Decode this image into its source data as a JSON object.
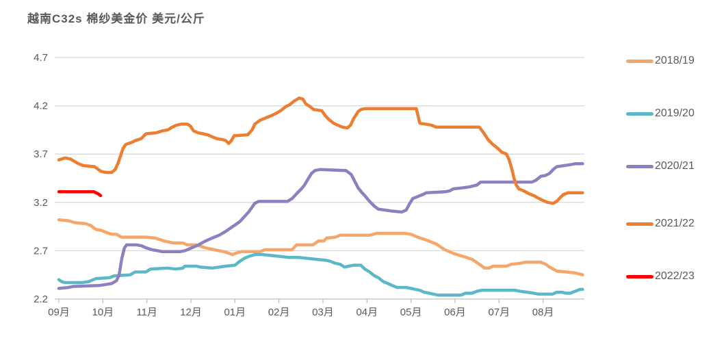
{
  "title": "越南C32s  棉纱美金价  美元/公斤",
  "colors": {
    "text": "#595959",
    "gridline": "#D9D9D9",
    "axis_line": "#BFBFBF",
    "background": "#FFFFFF"
  },
  "chart_data": {
    "type": "line",
    "title": "越南C32s 棉纱美金价 美元/公斤",
    "xlabel": "",
    "ylabel": "美元/公斤",
    "x_categories": [
      "09月",
      "10月",
      "11月",
      "12月",
      "01月",
      "02月",
      "03月",
      "04月",
      "05月",
      "06月",
      "07月",
      "08月"
    ],
    "x_unit": "months_since_september_tick",
    "y_ticks": [
      2.2,
      2.7,
      3.2,
      3.7,
      4.2,
      4.7
    ],
    "ylim": [
      2.2,
      4.7
    ],
    "xlim_months": [
      0,
      12
    ],
    "grid": "horizontal",
    "legend_position": "right",
    "series": [
      {
        "name": "2018/19",
        "color": "#F5A66B",
        "points": [
          [
            0,
            3.02
          ],
          [
            0.22,
            3.01
          ],
          [
            0.37,
            2.99
          ],
          [
            0.61,
            2.98
          ],
          [
            0.73,
            2.96
          ],
          [
            0.84,
            2.92
          ],
          [
            0.96,
            2.91
          ],
          [
            1.07,
            2.89
          ],
          [
            1.2,
            2.87
          ],
          [
            1.31,
            2.87
          ],
          [
            1.42,
            2.84
          ],
          [
            1.98,
            2.84
          ],
          [
            2.19,
            2.83
          ],
          [
            2.4,
            2.8
          ],
          [
            2.6,
            2.78
          ],
          [
            2.82,
            2.78
          ],
          [
            2.91,
            2.76
          ],
          [
            3.13,
            2.76
          ],
          [
            3.33,
            2.73
          ],
          [
            3.53,
            2.71
          ],
          [
            3.75,
            2.69
          ],
          [
            3.95,
            2.66
          ],
          [
            4.06,
            2.68
          ],
          [
            4.15,
            2.69
          ],
          [
            4.57,
            2.69
          ],
          [
            4.68,
            2.71
          ],
          [
            5.3,
            2.71
          ],
          [
            5.4,
            2.76
          ],
          [
            5.77,
            2.76
          ],
          [
            5.9,
            2.8
          ],
          [
            6.02,
            2.8
          ],
          [
            6.08,
            2.83
          ],
          [
            6.28,
            2.84
          ],
          [
            6.39,
            2.86
          ],
          [
            7.06,
            2.86
          ],
          [
            7.22,
            2.88
          ],
          [
            7.84,
            2.88
          ],
          [
            8,
            2.87
          ],
          [
            8.15,
            2.84
          ],
          [
            8.35,
            2.81
          ],
          [
            8.57,
            2.77
          ],
          [
            8.77,
            2.71
          ],
          [
            8.97,
            2.67
          ],
          [
            9.19,
            2.64
          ],
          [
            9.39,
            2.61
          ],
          [
            9.55,
            2.56
          ],
          [
            9.67,
            2.52
          ],
          [
            9.78,
            2.52
          ],
          [
            9.86,
            2.54
          ],
          [
            10.17,
            2.54
          ],
          [
            10.28,
            2.56
          ],
          [
            10.48,
            2.57
          ],
          [
            10.59,
            2.58
          ],
          [
            10.95,
            2.58
          ],
          [
            11.06,
            2.56
          ],
          [
            11.15,
            2.53
          ],
          [
            11.31,
            2.49
          ],
          [
            11.52,
            2.48
          ],
          [
            11.73,
            2.47
          ],
          [
            11.9,
            2.45
          ]
        ]
      },
      {
        "name": "2019/20",
        "color": "#5CB8C9",
        "points": [
          [
            0,
            2.4
          ],
          [
            0.06,
            2.38
          ],
          [
            0.14,
            2.37
          ],
          [
            0.53,
            2.37
          ],
          [
            0.68,
            2.38
          ],
          [
            0.84,
            2.41
          ],
          [
            1.15,
            2.42
          ],
          [
            1.26,
            2.44
          ],
          [
            1.62,
            2.45
          ],
          [
            1.73,
            2.48
          ],
          [
            1.98,
            2.48
          ],
          [
            2.08,
            2.51
          ],
          [
            2.47,
            2.52
          ],
          [
            2.66,
            2.51
          ],
          [
            2.82,
            2.52
          ],
          [
            2.86,
            2.54
          ],
          [
            3.13,
            2.54
          ],
          [
            3.22,
            2.53
          ],
          [
            3.48,
            2.52
          ],
          [
            3.64,
            2.53
          ],
          [
            3.79,
            2.54
          ],
          [
            4,
            2.55
          ],
          [
            4.11,
            2.59
          ],
          [
            4.21,
            2.62
          ],
          [
            4.31,
            2.64
          ],
          [
            4.46,
            2.66
          ],
          [
            4.62,
            2.66
          ],
          [
            4.84,
            2.65
          ],
          [
            5.04,
            2.64
          ],
          [
            5.24,
            2.63
          ],
          [
            5.46,
            2.63
          ],
          [
            5.66,
            2.62
          ],
          [
            5.86,
            2.61
          ],
          [
            6.08,
            2.6
          ],
          [
            6.17,
            2.59
          ],
          [
            6.28,
            2.57
          ],
          [
            6.39,
            2.56
          ],
          [
            6.49,
            2.53
          ],
          [
            6.59,
            2.54
          ],
          [
            6.7,
            2.55
          ],
          [
            6.86,
            2.55
          ],
          [
            6.95,
            2.51
          ],
          [
            7.06,
            2.48
          ],
          [
            7.17,
            2.44
          ],
          [
            7.26,
            2.42
          ],
          [
            7.37,
            2.38
          ],
          [
            7.48,
            2.36
          ],
          [
            7.57,
            2.34
          ],
          [
            7.68,
            2.32
          ],
          [
            7.89,
            2.32
          ],
          [
            8,
            2.31
          ],
          [
            8.1,
            2.3
          ],
          [
            8.2,
            2.29
          ],
          [
            8.3,
            2.27
          ],
          [
            8.41,
            2.26
          ],
          [
            8.51,
            2.25
          ],
          [
            8.62,
            2.24
          ],
          [
            9.13,
            2.24
          ],
          [
            9.24,
            2.26
          ],
          [
            9.39,
            2.26
          ],
          [
            9.5,
            2.28
          ],
          [
            9.6,
            2.29
          ],
          [
            10.37,
            2.29
          ],
          [
            10.48,
            2.28
          ],
          [
            10.64,
            2.27
          ],
          [
            10.79,
            2.26
          ],
          [
            10.9,
            2.25
          ],
          [
            11.21,
            2.25
          ],
          [
            11.31,
            2.27
          ],
          [
            11.42,
            2.27
          ],
          [
            11.52,
            2.26
          ],
          [
            11.62,
            2.26
          ],
          [
            11.73,
            2.28
          ],
          [
            11.84,
            2.3
          ],
          [
            11.9,
            2.3
          ]
        ]
      },
      {
        "name": "2020/21",
        "color": "#8F7FC0",
        "points": [
          [
            0,
            2.31
          ],
          [
            0.22,
            2.32
          ],
          [
            0.33,
            2.33
          ],
          [
            0.92,
            2.34
          ],
          [
            1.07,
            2.35
          ],
          [
            1.2,
            2.36
          ],
          [
            1.31,
            2.39
          ],
          [
            1.37,
            2.45
          ],
          [
            1.43,
            2.62
          ],
          [
            1.49,
            2.73
          ],
          [
            1.54,
            2.76
          ],
          [
            1.77,
            2.76
          ],
          [
            1.88,
            2.75
          ],
          [
            1.98,
            2.73
          ],
          [
            2.12,
            2.71
          ],
          [
            2.24,
            2.7
          ],
          [
            2.35,
            2.69
          ],
          [
            2.75,
            2.69
          ],
          [
            2.86,
            2.7
          ],
          [
            3.02,
            2.73
          ],
          [
            3.17,
            2.76
          ],
          [
            3.33,
            2.8
          ],
          [
            3.48,
            2.83
          ],
          [
            3.64,
            2.86
          ],
          [
            3.79,
            2.9
          ],
          [
            3.95,
            2.95
          ],
          [
            4.11,
            3
          ],
          [
            4.21,
            3.05
          ],
          [
            4.31,
            3.1
          ],
          [
            4.39,
            3.15
          ],
          [
            4.45,
            3.19
          ],
          [
            4.54,
            3.21
          ],
          [
            5.19,
            3.21
          ],
          [
            5.3,
            3.24
          ],
          [
            5.4,
            3.29
          ],
          [
            5.51,
            3.34
          ],
          [
            5.58,
            3.38
          ],
          [
            5.66,
            3.44
          ],
          [
            5.74,
            3.5
          ],
          [
            5.82,
            3.53
          ],
          [
            5.93,
            3.54
          ],
          [
            6.52,
            3.53
          ],
          [
            6.64,
            3.49
          ],
          [
            6.72,
            3.42
          ],
          [
            6.8,
            3.35
          ],
          [
            6.87,
            3.31
          ],
          [
            6.95,
            3.27
          ],
          [
            7.06,
            3.21
          ],
          [
            7.17,
            3.16
          ],
          [
            7.26,
            3.13
          ],
          [
            7.57,
            3.11
          ],
          [
            7.79,
            3.1
          ],
          [
            7.89,
            3.12
          ],
          [
            7.96,
            3.18
          ],
          [
            8.04,
            3.24
          ],
          [
            8.15,
            3.26
          ],
          [
            8.26,
            3.28
          ],
          [
            8.35,
            3.3
          ],
          [
            8.77,
            3.31
          ],
          [
            8.88,
            3.32
          ],
          [
            8.96,
            3.34
          ],
          [
            9.16,
            3.35
          ],
          [
            9.32,
            3.36
          ],
          [
            9.5,
            3.38
          ],
          [
            9.58,
            3.41
          ],
          [
            10.75,
            3.41
          ],
          [
            10.84,
            3.43
          ],
          [
            10.95,
            3.47
          ],
          [
            11.06,
            3.48
          ],
          [
            11.15,
            3.5
          ],
          [
            11.23,
            3.54
          ],
          [
            11.31,
            3.57
          ],
          [
            11.62,
            3.59
          ],
          [
            11.73,
            3.6
          ],
          [
            11.9,
            3.6
          ]
        ]
      },
      {
        "name": "2021/22",
        "color": "#ED7D31",
        "points": [
          [
            0,
            3.64
          ],
          [
            0.14,
            3.66
          ],
          [
            0.26,
            3.65
          ],
          [
            0.37,
            3.62
          ],
          [
            0.45,
            3.6
          ],
          [
            0.56,
            3.58
          ],
          [
            0.81,
            3.57
          ],
          [
            0.87,
            3.55
          ],
          [
            0.96,
            3.52
          ],
          [
            1.07,
            3.51
          ],
          [
            1.2,
            3.51
          ],
          [
            1.28,
            3.54
          ],
          [
            1.34,
            3.6
          ],
          [
            1.4,
            3.68
          ],
          [
            1.46,
            3.76
          ],
          [
            1.52,
            3.8
          ],
          [
            1.65,
            3.82
          ],
          [
            1.74,
            3.84
          ],
          [
            1.87,
            3.86
          ],
          [
            1.98,
            3.91
          ],
          [
            2.21,
            3.92
          ],
          [
            2.35,
            3.94
          ],
          [
            2.47,
            3.95
          ],
          [
            2.58,
            3.98
          ],
          [
            2.68,
            4
          ],
          [
            2.78,
            4.01
          ],
          [
            2.92,
            4.01
          ],
          [
            2.99,
            3.99
          ],
          [
            3.06,
            3.94
          ],
          [
            3.17,
            3.92
          ],
          [
            3.38,
            3.9
          ],
          [
            3.48,
            3.88
          ],
          [
            3.59,
            3.86
          ],
          [
            3.72,
            3.85
          ],
          [
            3.79,
            3.84
          ],
          [
            3.86,
            3.81
          ],
          [
            3.92,
            3.84
          ],
          [
            3.98,
            3.89
          ],
          [
            4.29,
            3.9
          ],
          [
            4.39,
            3.95
          ],
          [
            4.45,
            4.01
          ],
          [
            4.57,
            4.05
          ],
          [
            4.73,
            4.08
          ],
          [
            4.84,
            4.1
          ],
          [
            4.93,
            4.12
          ],
          [
            5.04,
            4.15
          ],
          [
            5.15,
            4.19
          ],
          [
            5.24,
            4.21
          ],
          [
            5.35,
            4.25
          ],
          [
            5.46,
            4.28
          ],
          [
            5.54,
            4.27
          ],
          [
            5.61,
            4.22
          ],
          [
            5.71,
            4.19
          ],
          [
            5.79,
            4.16
          ],
          [
            5.97,
            4.15
          ],
          [
            6.05,
            4.1
          ],
          [
            6.13,
            4.06
          ],
          [
            6.24,
            4.02
          ],
          [
            6.33,
            4
          ],
          [
            6.44,
            3.98
          ],
          [
            6.55,
            3.97
          ],
          [
            6.63,
            4
          ],
          [
            6.7,
            4.07
          ],
          [
            6.8,
            4.14
          ],
          [
            6.86,
            4.16
          ],
          [
            6.95,
            4.17
          ],
          [
            8.12,
            4.17
          ],
          [
            8.2,
            4.02
          ],
          [
            8.46,
            4
          ],
          [
            8.57,
            3.98
          ],
          [
            9.55,
            3.98
          ],
          [
            9.65,
            3.92
          ],
          [
            9.75,
            3.85
          ],
          [
            9.86,
            3.8
          ],
          [
            9.97,
            3.76
          ],
          [
            10.06,
            3.72
          ],
          [
            10.17,
            3.7
          ],
          [
            10.23,
            3.64
          ],
          [
            10.3,
            3.53
          ],
          [
            10.34,
            3.45
          ],
          [
            10.39,
            3.38
          ],
          [
            10.45,
            3.34
          ],
          [
            10.56,
            3.32
          ],
          [
            10.68,
            3.29
          ],
          [
            10.79,
            3.27
          ],
          [
            10.95,
            3.23
          ],
          [
            11.1,
            3.2
          ],
          [
            11.23,
            3.19
          ],
          [
            11.31,
            3.21
          ],
          [
            11.39,
            3.25
          ],
          [
            11.46,
            3.28
          ],
          [
            11.57,
            3.3
          ],
          [
            11.9,
            3.3
          ]
        ]
      },
      {
        "name": "2022/23",
        "color": "#FF0000",
        "points": [
          [
            0,
            3.31
          ],
          [
            0.8,
            3.31
          ],
          [
            0.84,
            3.3
          ],
          [
            0.89,
            3.29
          ],
          [
            0.95,
            3.27
          ]
        ]
      }
    ]
  },
  "legend": {
    "items": [
      "2018/19",
      "2019/20",
      "2020/21",
      "2021/22",
      "2022/23"
    ]
  }
}
